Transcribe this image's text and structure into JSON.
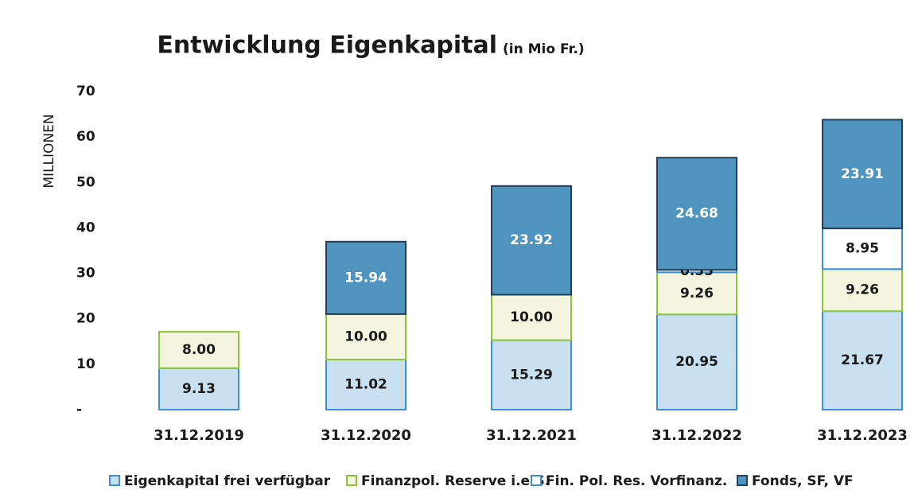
{
  "chart_data": {
    "type": "bar",
    "stacked": true,
    "title": "Entwicklung Eigenkapital",
    "subtitle": "(in Mio Fr.)",
    "y_label": "MILLIONEN",
    "categories": [
      "31.12.2019",
      "31.12.2020",
      "31.12.2021",
      "31.12.2022",
      "31.12.2023"
    ],
    "series": [
      {
        "name": "Eigenkapital frei verfügbar",
        "color": "#c9e0f0",
        "border": "#3d8fcf",
        "label_color": "#1a1a1a",
        "values": [
          9.13,
          11.02,
          15.29,
          20.95,
          21.67
        ]
      },
      {
        "name": "Finanzpol. Reserve i.e.S.",
        "color": "#f4f5df",
        "border": "#8cc43c",
        "label_color": "#1a1a1a",
        "values": [
          8,
          10,
          10,
          9.26,
          9.26
        ],
        "value_labels": [
          "8.00",
          "10.00",
          "10.00",
          "9.26",
          "9.26"
        ]
      },
      {
        "name": "Fin. Pol. Res. Vorfinanz.",
        "color": "#ffffff",
        "border": "#3d8fcf",
        "label_color": "#1a1a1a",
        "values": [
          null,
          null,
          null,
          0.55,
          8.95
        ]
      },
      {
        "name": "Fonds, SF, VF",
        "color": "#4f93bf",
        "border": "#1f3f5a",
        "label_color": "#ffffff",
        "values": [
          null,
          15.94,
          23.92,
          24.68,
          23.91
        ]
      }
    ],
    "ylim": [
      0,
      70
    ],
    "yticks": [
      {
        "value": 0,
        "label": "-"
      },
      10,
      20,
      30,
      40,
      50,
      60,
      70
    ],
    "legend": "bottom"
  }
}
